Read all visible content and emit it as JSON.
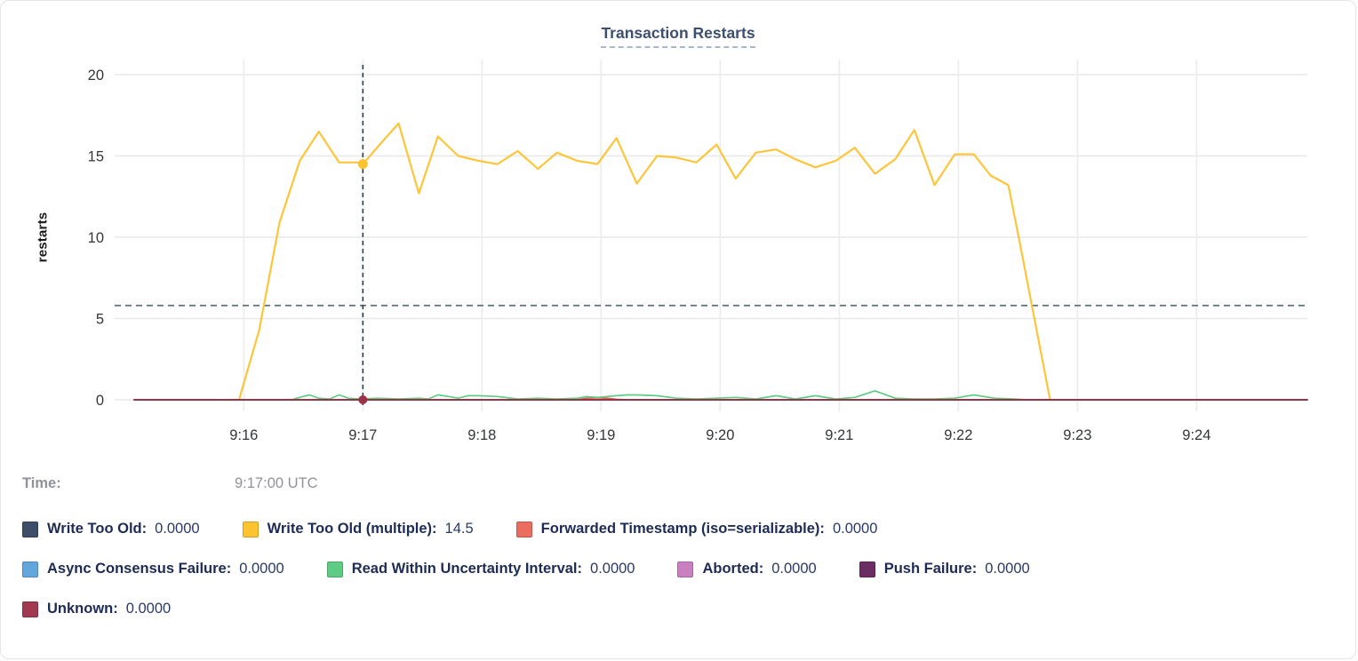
{
  "accent_colors": {
    "title_navy": "#3d4f6e",
    "grid": "#e8e8e8",
    "hover_line": "#2e3d49",
    "threshold_line": "#5f7585",
    "axis_text": "#333639",
    "muted_gray": "#8f9298"
  },
  "footer": {
    "time_label": "Time:",
    "time_value": "9:17:00 UTC"
  },
  "legend": {
    "rows": [
      [
        {
          "name": "Write Too Old",
          "value": "0.0000",
          "color": "#3e4e68"
        },
        {
          "name": "Write Too Old (multiple)",
          "value": "14.5",
          "color": "#fdc42f"
        },
        {
          "name": "Forwarded Timestamp (iso=serializable)",
          "value": "0.0000",
          "color": "#ea6d60"
        }
      ],
      [
        {
          "name": "Async Consensus Failure",
          "value": "0.0000",
          "color": "#63a6db"
        },
        {
          "name": "Read Within Uncertainty Interval",
          "value": "0.0000",
          "color": "#5ecc84"
        },
        {
          "name": "Aborted",
          "value": "0.0000",
          "color": "#c980c1"
        },
        {
          "name": "Push Failure",
          "value": "0.0000",
          "color": "#6c2e62"
        }
      ],
      [
        {
          "name": "Unknown",
          "value": "0.0000",
          "color": "#a13a50"
        }
      ]
    ]
  },
  "chart_data": {
    "type": "line",
    "title": "Transaction Restarts",
    "xlabel": "",
    "ylabel": "restarts",
    "ylim": [
      0,
      20
    ],
    "yticks": [
      0,
      5,
      10,
      15,
      20
    ],
    "x_domain_minutes": [
      15.08,
      24.93
    ],
    "xticks": [
      {
        "t": 16,
        "label": "9:16"
      },
      {
        "t": 17,
        "label": "9:17"
      },
      {
        "t": 18,
        "label": "9:18"
      },
      {
        "t": 19,
        "label": "9:19"
      },
      {
        "t": 20,
        "label": "9:20"
      },
      {
        "t": 21,
        "label": "9:21"
      },
      {
        "t": 22,
        "label": "9:22"
      },
      {
        "t": 23,
        "label": "9:23"
      },
      {
        "t": 24,
        "label": "9:24"
      }
    ],
    "grid": true,
    "legend_position": "below",
    "threshold_line": {
      "value": 5.8,
      "style": "dashed",
      "color": "#5f7585"
    },
    "hover": {
      "t": 17.0,
      "time_label": "9:17:00 UTC",
      "markers": [
        {
          "series": "Write Too Old (multiple)",
          "value": 14.5,
          "color": "#fdc42f",
          "r": 5.5
        },
        {
          "series": "Unknown",
          "value": 0,
          "color": "#9a3248",
          "r": 5
        }
      ]
    },
    "series": [
      {
        "name": "Write Too Old",
        "color": "#3e4e68",
        "width": 1.6,
        "points": [
          [
            15.96,
            0
          ],
          [
            22.6,
            0
          ]
        ]
      },
      {
        "name": "Write Too Old (multiple)",
        "color": "#fdc53a",
        "width": 2.2,
        "points": [
          [
            15.96,
            0
          ],
          [
            16.13,
            4.3
          ],
          [
            16.3,
            10.9
          ],
          [
            16.47,
            14.7
          ],
          [
            16.63,
            16.5
          ],
          [
            16.8,
            14.6
          ],
          [
            16.97,
            14.6
          ],
          [
            17,
            14.5
          ],
          [
            17.13,
            15.6
          ],
          [
            17.3,
            17
          ],
          [
            17.47,
            12.7
          ],
          [
            17.63,
            16.2
          ],
          [
            17.8,
            15
          ],
          [
            17.97,
            14.7
          ],
          [
            18.13,
            14.5
          ],
          [
            18.3,
            15.3
          ],
          [
            18.47,
            14.2
          ],
          [
            18.63,
            15.2
          ],
          [
            18.8,
            14.7
          ],
          [
            18.97,
            14.5
          ],
          [
            19.13,
            16.1
          ],
          [
            19.3,
            13.3
          ],
          [
            19.47,
            15
          ],
          [
            19.63,
            14.9
          ],
          [
            19.8,
            14.6
          ],
          [
            19.97,
            15.7
          ],
          [
            20.13,
            13.6
          ],
          [
            20.3,
            15.2
          ],
          [
            20.47,
            15.4
          ],
          [
            20.63,
            14.8
          ],
          [
            20.8,
            14.3
          ],
          [
            20.97,
            14.7
          ],
          [
            21.13,
            15.5
          ],
          [
            21.3,
            13.9
          ],
          [
            21.47,
            14.8
          ],
          [
            21.63,
            16.6
          ],
          [
            21.8,
            13.2
          ],
          [
            21.97,
            15.1
          ],
          [
            22.13,
            15.1
          ],
          [
            22.27,
            13.8
          ],
          [
            22.42,
            13.2
          ],
          [
            22.52,
            9.5
          ],
          [
            22.77,
            0
          ]
        ]
      },
      {
        "name": "Forwarded Timestamp (iso=serializable)",
        "color": "#e25b54",
        "width": 1.7,
        "points": [
          [
            15.08,
            0
          ],
          [
            18.8,
            0
          ],
          [
            18.88,
            0.1
          ],
          [
            18.97,
            0.12
          ],
          [
            19.05,
            0.1
          ],
          [
            19.13,
            0.03
          ],
          [
            19.22,
            0
          ],
          [
            22.6,
            0
          ]
        ]
      },
      {
        "name": "Async Consensus Failure",
        "color": "#63a6db",
        "width": 1.6,
        "points": [
          [
            15.96,
            0
          ],
          [
            22.6,
            0
          ]
        ]
      },
      {
        "name": "Read Within Uncertainty Interval",
        "color": "#5ecc84",
        "width": 1.7,
        "points": [
          [
            16.4,
            0
          ],
          [
            16.47,
            0.15
          ],
          [
            16.55,
            0.3
          ],
          [
            16.63,
            0.1
          ],
          [
            16.72,
            0.05
          ],
          [
            16.8,
            0.3
          ],
          [
            16.88,
            0.1
          ],
          [
            16.97,
            0.05
          ],
          [
            17.13,
            0.1
          ],
          [
            17.3,
            0.05
          ],
          [
            17.47,
            0.1
          ],
          [
            17.55,
            0.05
          ],
          [
            17.63,
            0.3
          ],
          [
            17.72,
            0.2
          ],
          [
            17.8,
            0.1
          ],
          [
            17.88,
            0.25
          ],
          [
            17.97,
            0.25
          ],
          [
            18.13,
            0.2
          ],
          [
            18.3,
            0.05
          ],
          [
            18.47,
            0.1
          ],
          [
            18.63,
            0.05
          ],
          [
            18.8,
            0.1
          ],
          [
            18.88,
            0.2
          ],
          [
            18.97,
            0.15
          ],
          [
            19.13,
            0.25
          ],
          [
            19.22,
            0.3
          ],
          [
            19.3,
            0.3
          ],
          [
            19.47,
            0.25
          ],
          [
            19.63,
            0.1
          ],
          [
            19.8,
            0.05
          ],
          [
            19.97,
            0.1
          ],
          [
            20.13,
            0.15
          ],
          [
            20.3,
            0.05
          ],
          [
            20.47,
            0.25
          ],
          [
            20.63,
            0.05
          ],
          [
            20.8,
            0.25
          ],
          [
            20.97,
            0.05
          ],
          [
            21.13,
            0.15
          ],
          [
            21.3,
            0.55
          ],
          [
            21.47,
            0.1
          ],
          [
            21.63,
            0.05
          ],
          [
            21.8,
            0.05
          ],
          [
            21.97,
            0.1
          ],
          [
            22.13,
            0.3
          ],
          [
            22.3,
            0.1
          ],
          [
            22.47,
            0.05
          ],
          [
            22.58,
            0
          ]
        ]
      },
      {
        "name": "Aborted",
        "color": "#c980c1",
        "width": 1.6,
        "points": [
          [
            15.96,
            0
          ],
          [
            22.6,
            0
          ]
        ]
      },
      {
        "name": "Push Failure",
        "color": "#6c2e62",
        "width": 1.6,
        "points": [
          [
            15.96,
            0
          ],
          [
            22.6,
            0
          ]
        ]
      },
      {
        "name": "Unknown",
        "color": "#9a3248",
        "width": 1.9,
        "points": [
          [
            15.08,
            0
          ],
          [
            24.93,
            0
          ]
        ]
      }
    ]
  }
}
